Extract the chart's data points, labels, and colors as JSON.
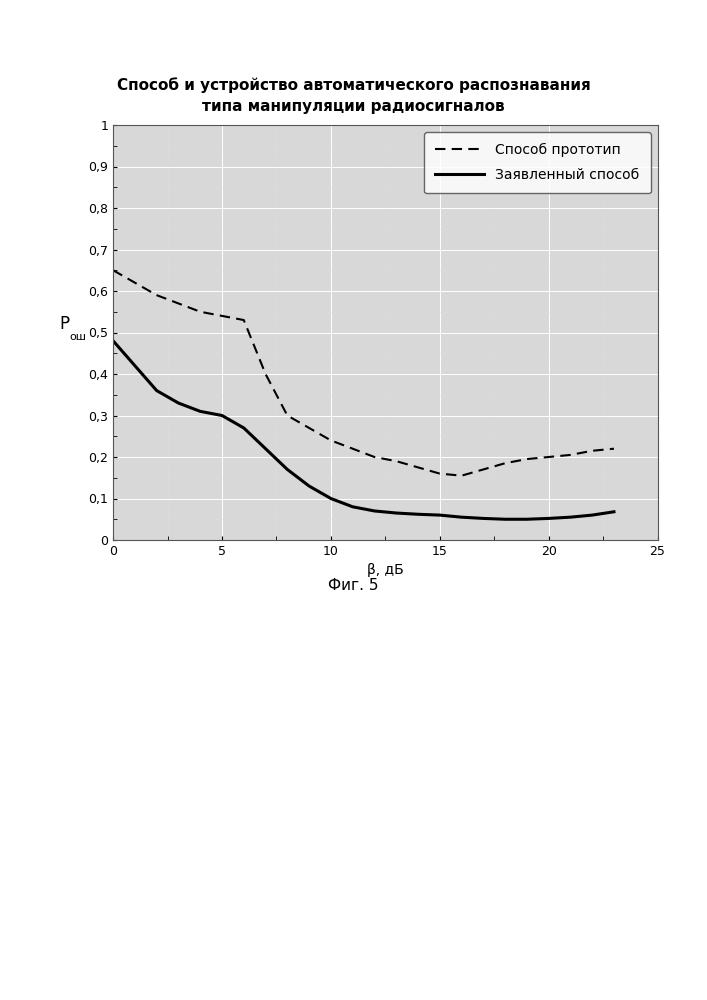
{
  "title_line1": "Способ и устройство автоматического распознавания",
  "title_line2": "типа манипуляции радиосигналов",
  "xlabel": "β, дБ",
  "fig_label": "Фиг. 5",
  "xlim": [
    0,
    25
  ],
  "ylim": [
    0,
    1
  ],
  "xticks": [
    0,
    5,
    10,
    15,
    20,
    25
  ],
  "yticks": [
    0,
    0.1,
    0.2,
    0.3,
    0.4,
    0.5,
    0.6,
    0.7,
    0.8,
    0.9,
    1
  ],
  "ytick_labels": [
    "0",
    "0,1",
    "0,2",
    "0,3",
    "0,4",
    "0,5",
    "0,6",
    "0,7",
    "0,8",
    "0,9",
    "1"
  ],
  "dashed_x": [
    0,
    1,
    2,
    3,
    4,
    5,
    6,
    7,
    8,
    9,
    10,
    11,
    12,
    13,
    14,
    15,
    16,
    17,
    18,
    19,
    20,
    21,
    22,
    23
  ],
  "dashed_y": [
    0.65,
    0.62,
    0.59,
    0.57,
    0.55,
    0.54,
    0.53,
    0.4,
    0.3,
    0.27,
    0.24,
    0.22,
    0.2,
    0.19,
    0.175,
    0.16,
    0.155,
    0.17,
    0.185,
    0.195,
    0.2,
    0.205,
    0.215,
    0.22
  ],
  "solid_x": [
    0,
    1,
    2,
    3,
    4,
    5,
    6,
    7,
    8,
    9,
    10,
    11,
    12,
    13,
    14,
    15,
    16,
    17,
    18,
    19,
    20,
    21,
    22,
    23
  ],
  "solid_y": [
    0.48,
    0.42,
    0.36,
    0.33,
    0.31,
    0.3,
    0.27,
    0.22,
    0.17,
    0.13,
    0.1,
    0.08,
    0.07,
    0.065,
    0.062,
    0.06,
    0.055,
    0.052,
    0.05,
    0.05,
    0.052,
    0.055,
    0.06,
    0.068
  ],
  "legend_dashed": "Способ прототип",
  "legend_solid": "Заявленный способ",
  "line_color": "#000000",
  "grid_color": "#c8c8c8",
  "bg_color": "#d8d8d8",
  "title_fontsize": 11,
  "tick_fontsize": 9,
  "legend_fontsize": 10,
  "xlabel_fontsize": 10,
  "figlabel_fontsize": 11
}
